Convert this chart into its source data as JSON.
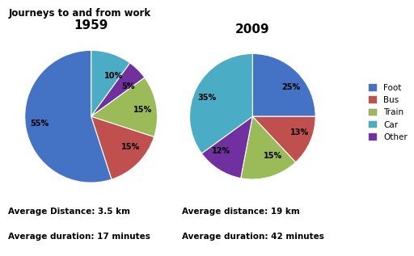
{
  "title": "Journeys to and from work",
  "chart1_year": "1959",
  "chart2_year": "2009",
  "categories": [
    "Foot",
    "Bus",
    "Train",
    "Car",
    "Other"
  ],
  "colors": [
    "#4472C4",
    "#C0504D",
    "#9BBB59",
    "#4BACC6",
    "#7030A0"
  ],
  "pie1_values": [
    55,
    15,
    15,
    10,
    5
  ],
  "pie2_values": [
    25,
    13,
    15,
    35,
    12
  ],
  "pie1_labels": [
    "55%",
    "15%",
    "15%",
    "10%",
    "5%"
  ],
  "pie2_labels": [
    "25%",
    "13%",
    "15%",
    "35%",
    "12%"
  ],
  "avg_distance_1": "Average Distance: 3.5 km",
  "avg_duration_1": "Average duration: 17 minutes",
  "avg_distance_2": "Average distance: 19 km",
  "avg_duration_2": "Average duration: 42 minutes",
  "bg_color": "#FFFFFF"
}
